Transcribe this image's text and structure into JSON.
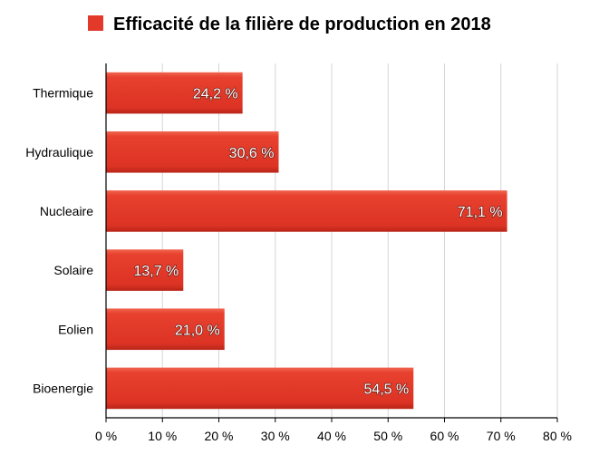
{
  "chart_data": {
    "type": "bar",
    "orientation": "horizontal",
    "legend_position": "top",
    "grid": true,
    "series": [
      {
        "name": "Efficacité de la filière de production en 2018",
        "color": "#e3392b",
        "values": [
          24.2,
          30.6,
          71.1,
          13.7,
          21.0,
          54.5
        ],
        "value_labels": [
          "24,2 %",
          "30,6 %",
          "71,1 %",
          "13,7 %",
          "21,0 %",
          "54,5 %"
        ]
      }
    ],
    "categories": [
      "Thermique",
      "Hydraulique",
      "Nucleaire",
      "Solaire",
      "Eolien",
      "Bioenergie"
    ],
    "xlim": [
      0,
      80
    ],
    "x_ticks": [
      0,
      10,
      20,
      30,
      40,
      50,
      60,
      70,
      80
    ],
    "x_tick_labels": [
      "0 %",
      "10 %",
      "20 %",
      "30 %",
      "40 %",
      "50 %",
      "60 %",
      "70 %",
      "80 %"
    ],
    "title": "",
    "xlabel": "",
    "ylabel": ""
  }
}
